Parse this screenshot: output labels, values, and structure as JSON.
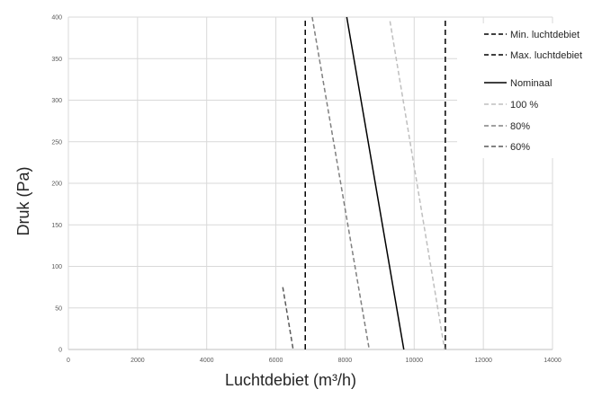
{
  "chart_data": {
    "type": "line",
    "title": "",
    "xlabel": "Luchtdebiet (m³/h)",
    "ylabel": "Druk (Pa)",
    "xlim": [
      0,
      14000
    ],
    "ylim": [
      0,
      400
    ],
    "x_ticks": [
      "0",
      "2000",
      "4000",
      "6000",
      "8000",
      "10000",
      "12000",
      "14000"
    ],
    "y_ticks": [
      "0",
      "50",
      "100",
      "150",
      "200",
      "250",
      "300",
      "350",
      "400"
    ],
    "grid": true,
    "legend_position": "top-right",
    "series": [
      {
        "name": "Min. luchtdebiet",
        "color": "#000000",
        "style": "dashed",
        "points": [
          [
            6850,
            0
          ],
          [
            6850,
            400
          ]
        ]
      },
      {
        "name": "Max. luchtdebiet",
        "color": "#000000",
        "style": "dashed",
        "points": [
          [
            10900,
            0
          ],
          [
            10900,
            400
          ]
        ]
      },
      {
        "name": "Nominaal",
        "color": "#000000",
        "style": "solid",
        "points": [
          [
            8050,
            400
          ],
          [
            9700,
            0
          ]
        ]
      },
      {
        "name": "100 %",
        "color": "#bfbfbf",
        "style": "dashed",
        "points": [
          [
            9300,
            395
          ],
          [
            10880,
            0
          ]
        ]
      },
      {
        "name": "80%",
        "color": "#808080",
        "style": "dashed",
        "points": [
          [
            7050,
            400
          ],
          [
            8700,
            0
          ]
        ]
      },
      {
        "name": "60%",
        "color": "#595959",
        "style": "dashed",
        "points": [
          [
            6200,
            75
          ],
          [
            6500,
            0
          ]
        ]
      }
    ]
  }
}
